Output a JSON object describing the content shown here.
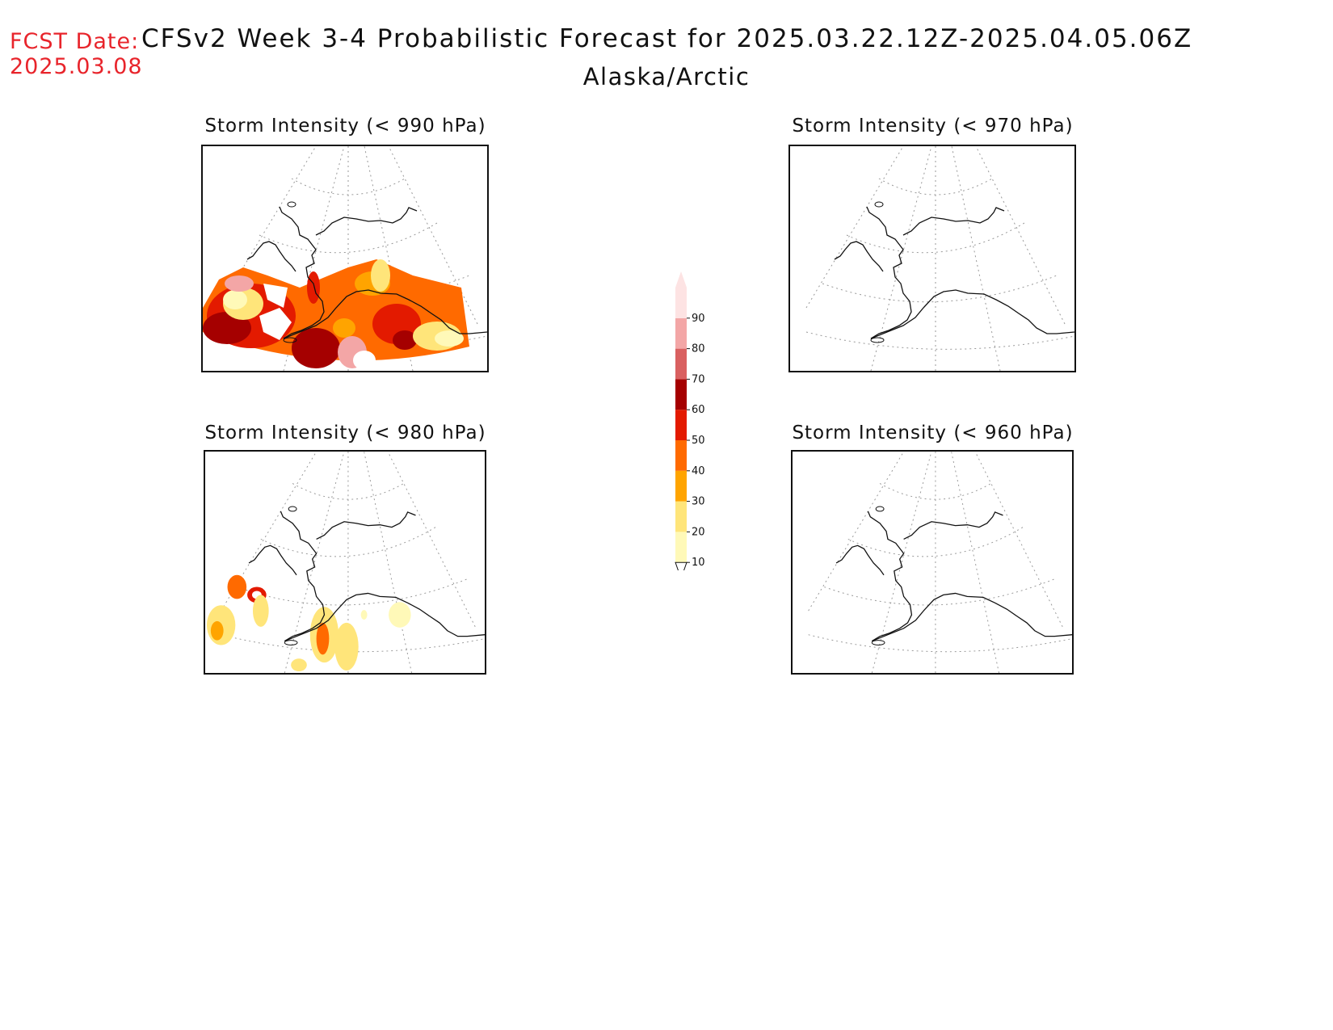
{
  "header": {
    "fcst_label": "FCST Date:",
    "fcst_date": "2025.03.08",
    "title": "CFSv2 Week 3-4 Probabilistic Forecast for 2025.03.22.12Z-2025.04.05.06Z",
    "region": "Alaska/Arctic"
  },
  "panels": [
    {
      "id": "p990",
      "title": "Storm Intensity (< 990 hPa)",
      "shading": "heavy"
    },
    {
      "id": "p970",
      "title": "Storm Intensity (< 970 hPa)",
      "shading": "none"
    },
    {
      "id": "p980",
      "title": "Storm Intensity (< 980 hPa)",
      "shading": "light"
    },
    {
      "id": "p960",
      "title": "Storm Intensity (< 960 hPa)",
      "shading": "none"
    }
  ],
  "colorbar": {
    "levels": [
      "10",
      "20",
      "30",
      "40",
      "50",
      "60",
      "70",
      "80",
      "90"
    ],
    "colors": [
      "#fff9b8",
      "#ffe57a",
      "#ffa400",
      "#ff6a00",
      "#e31a00",
      "#a50000",
      "#d96060",
      "#f3a6a6",
      "#fde3e3"
    ]
  }
}
